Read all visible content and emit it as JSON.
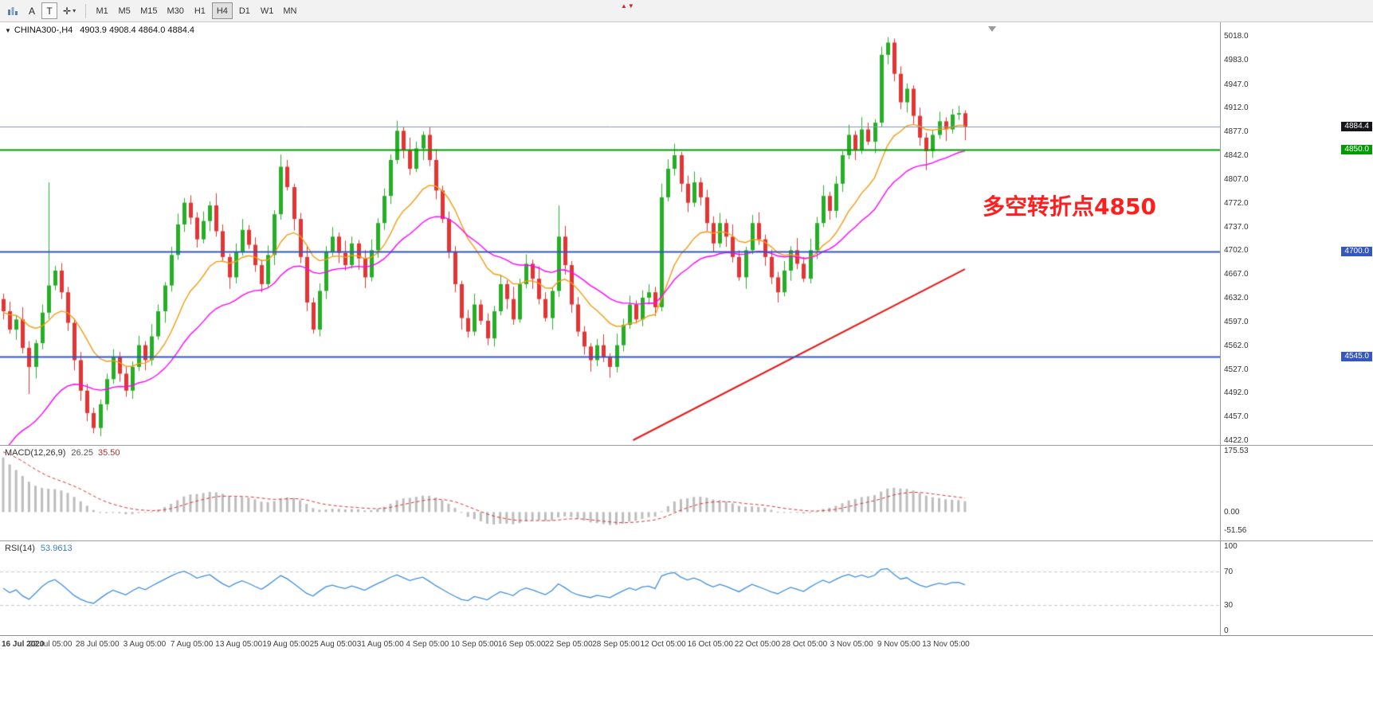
{
  "toolbar": {
    "a_label": "A",
    "t_label": "T",
    "timeframes": [
      "M1",
      "M5",
      "M15",
      "M30",
      "H1",
      "H4",
      "D1",
      "W1",
      "MN"
    ],
    "active_timeframe": "H4"
  },
  "icons": {
    "dropdown_triangle": "▼",
    "crosshair": "✛",
    "caret": "▾",
    "alert_up": "▲",
    "alert_down": "▼"
  },
  "chart": {
    "header": {
      "symbol": "CHINA300-,H4",
      "ohlc": "4903.9 4908.4 4864.0 4884.4"
    },
    "annotation": {
      "text": "多空转折点4850",
      "color": "#ff1e1e"
    }
  },
  "macd": {
    "label": "MACD(12,26,9)",
    "value": "26.25",
    "signal_value": "35.50",
    "axis": [
      "175.53",
      "0.00",
      "-51.56"
    ]
  },
  "rsi": {
    "label": "RSI(14)",
    "value": "53.9613",
    "axis": [
      "100",
      "70",
      "30",
      "0"
    ]
  },
  "chart_data": {
    "type": "candlestick",
    "symbol": "CHINA300-",
    "timeframe": "H4",
    "last_ohlc": {
      "open": 4903.9,
      "high": 4908.4,
      "low": 4864.0,
      "close": 4884.4
    },
    "ylim": [
      4422.0,
      5018.0
    ],
    "up_color": "#27ae27",
    "down_color": "#e43434",
    "y_axis_ticks": [
      5018.0,
      4983.0,
      4947.0,
      4912.0,
      4877.0,
      4842.0,
      4807.0,
      4772.0,
      4737.0,
      4702.0,
      4667.0,
      4632.0,
      4597.0,
      4562.0,
      4527.0,
      4492.0,
      4457.0,
      4422.0
    ],
    "x_labels": [
      "16 Jul 2020",
      "22 Jul 05:00",
      "28 Jul 05:00",
      "3 Aug 05:00",
      "7 Aug 05:00",
      "13 Aug 05:00",
      "19 Aug 05:00",
      "25 Aug 05:00",
      "31 Aug 05:00",
      "4 Sep 05:00",
      "10 Sep 05:00",
      "16 Sep 05:00",
      "22 Sep 05:00",
      "28 Sep 05:00",
      "12 Oct 05:00",
      "16 Oct 05:00",
      "22 Oct 05:00",
      "28 Oct 05:00",
      "3 Nov 05:00",
      "9 Nov 05:00",
      "13 Nov 05:00"
    ],
    "horizontal_levels": [
      {
        "price": 4884.4,
        "label": "4884.4",
        "line_color": "#7d96b2",
        "line_width": 1,
        "tag_bg": "#15151c",
        "type": "current-price"
      },
      {
        "price": 4850.0,
        "label": "4850.0",
        "line_color": "#009b00",
        "line_width": 2,
        "tag_bg": "#009b00",
        "type": "level"
      },
      {
        "price": 4700.0,
        "label": "4700.0",
        "line_color": "#3456c0",
        "line_width": 2,
        "tag_bg": "#3456c0",
        "type": "level"
      },
      {
        "price": 4545.0,
        "label": "4545.0",
        "line_color": "#3456c0",
        "line_width": 2,
        "tag_bg": "#3456c0",
        "type": "level"
      }
    ],
    "trendline": {
      "color": "#e81717",
      "width": 2,
      "from": {
        "bar_frac": 0.655,
        "price": 4422.0
      },
      "to": {
        "bar_frac": 1.0,
        "price": 4674.0
      }
    },
    "moving_averages": [
      {
        "name": "fast-ma",
        "color": "#f39c12",
        "period": 14,
        "init": 4610
      },
      {
        "name": "slow-ma",
        "color": "#ff00ff",
        "period": 30,
        "init": 4390
      }
    ],
    "macd": {
      "params": [
        12,
        26,
        9
      ],
      "last_values": [
        26.25,
        35.5
      ],
      "range": [
        -51.56,
        175.53
      ],
      "histogram_color": "#bdbdbd",
      "signal_color": "#e03030",
      "init": {
        "ema12": 4700,
        "ema26": 4524.5,
        "signal": 175.5
      }
    },
    "rsi": {
      "period": 14,
      "last_value": 53.9613,
      "range": [
        0,
        100
      ],
      "levels": [
        70,
        30
      ],
      "line_color": "#3f8fde",
      "level_color": "#c4cad1"
    },
    "candles_ohlc": [
      [
        4630,
        4638,
        4600,
        4612
      ],
      [
        4612,
        4626,
        4579,
        4585
      ],
      [
        4585,
        4606,
        4570,
        4600
      ],
      [
        4600,
        4618,
        4550,
        4558
      ],
      [
        4558,
        4568,
        4490,
        4530
      ],
      [
        4530,
        4570,
        4513,
        4565
      ],
      [
        4565,
        4622,
        4556,
        4610
      ],
      [
        4610,
        4802,
        4601,
        4650
      ],
      [
        4650,
        4679,
        4643,
        4672
      ],
      [
        4672,
        4683,
        4630,
        4640
      ],
      [
        4640,
        4648,
        4583,
        4595
      ],
      [
        4595,
        4601,
        4525,
        4540
      ],
      [
        4540,
        4552,
        4480,
        4495
      ],
      [
        4495,
        4505,
        4450,
        4462
      ],
      [
        4462,
        4470,
        4432,
        4440
      ],
      [
        4440,
        4482,
        4428,
        4475
      ],
      [
        4475,
        4520,
        4466,
        4512
      ],
      [
        4512,
        4556,
        4505,
        4545
      ],
      [
        4545,
        4552,
        4508,
        4520
      ],
      [
        4520,
        4531,
        4486,
        4495
      ],
      [
        4495,
        4538,
        4483,
        4530
      ],
      [
        4530,
        4576,
        4524,
        4562
      ],
      [
        4562,
        4568,
        4525,
        4540
      ],
      [
        4540,
        4593,
        4532,
        4575
      ],
      [
        4575,
        4622,
        4570,
        4612
      ],
      [
        4612,
        4655,
        4595,
        4650
      ],
      [
        4650,
        4707,
        4641,
        4695
      ],
      [
        4695,
        4756,
        4688,
        4740
      ],
      [
        4740,
        4779,
        4729,
        4772
      ],
      [
        4772,
        4783,
        4740,
        4750
      ],
      [
        4750,
        4758,
        4706,
        4718
      ],
      [
        4718,
        4759,
        4712,
        4745
      ],
      [
        4745,
        4774,
        4730,
        4768
      ],
      [
        4768,
        4786,
        4722,
        4730
      ],
      [
        4730,
        4740,
        4687,
        4692
      ],
      [
        4692,
        4697,
        4645,
        4662
      ],
      [
        4662,
        4712,
        4653,
        4700
      ],
      [
        4700,
        4748,
        4694,
        4732
      ],
      [
        4732,
        4739,
        4704,
        4710
      ],
      [
        4710,
        4721,
        4670,
        4680
      ],
      [
        4680,
        4688,
        4640,
        4652
      ],
      [
        4652,
        4709,
        4646,
        4695
      ],
      [
        4695,
        4761,
        4680,
        4755
      ],
      [
        4755,
        4843,
        4747,
        4825
      ],
      [
        4825,
        4835,
        4790,
        4795
      ],
      [
        4795,
        4800,
        4731,
        4748
      ],
      [
        4748,
        4757,
        4683,
        4692
      ],
      [
        4692,
        4708,
        4612,
        4625
      ],
      [
        4625,
        4632,
        4579,
        4585
      ],
      [
        4585,
        4653,
        4575,
        4642
      ],
      [
        4642,
        4708,
        4630,
        4700
      ],
      [
        4700,
        4736,
        4694,
        4722
      ],
      [
        4722,
        4728,
        4683,
        4698
      ],
      [
        4698,
        4716,
        4672,
        4680
      ],
      [
        4680,
        4722,
        4675,
        4712
      ],
      [
        4712,
        4717,
        4673,
        4690
      ],
      [
        4690,
        4702,
        4646,
        4662
      ],
      [
        4662,
        4718,
        4656,
        4702
      ],
      [
        4702,
        4749,
        4691,
        4742
      ],
      [
        4742,
        4793,
        4732,
        4782
      ],
      [
        4782,
        4843,
        4770,
        4835
      ],
      [
        4835,
        4893,
        4829,
        4878
      ],
      [
        4878,
        4884,
        4837,
        4850
      ],
      [
        4850,
        4868,
        4813,
        4822
      ],
      [
        4822,
        4862,
        4817,
        4852
      ],
      [
        4852,
        4877,
        4835,
        4872
      ],
      [
        4872,
        4884,
        4826,
        4835
      ],
      [
        4835,
        4851,
        4777,
        4790
      ],
      [
        4790,
        4797,
        4742,
        4748
      ],
      [
        4748,
        4759,
        4690,
        4700
      ],
      [
        4700,
        4708,
        4640,
        4652
      ],
      [
        4652,
        4657,
        4585,
        4602
      ],
      [
        4602,
        4614,
        4573,
        4582
      ],
      [
        4582,
        4638,
        4576,
        4622
      ],
      [
        4622,
        4629,
        4592,
        4598
      ],
      [
        4598,
        4609,
        4562,
        4572
      ],
      [
        4572,
        4620,
        4560,
        4612
      ],
      [
        4612,
        4666,
        4606,
        4652
      ],
      [
        4652,
        4658,
        4615,
        4630
      ],
      [
        4630,
        4648,
        4592,
        4600
      ],
      [
        4600,
        4660,
        4595,
        4652
      ],
      [
        4652,
        4696,
        4646,
        4682
      ],
      [
        4682,
        4688,
        4645,
        4660
      ],
      [
        4660,
        4678,
        4622,
        4630
      ],
      [
        4630,
        4640,
        4597,
        4602
      ],
      [
        4602,
        4647,
        4585,
        4642
      ],
      [
        4642,
        4768,
        4633,
        4722
      ],
      [
        4722,
        4738,
        4666,
        4680
      ],
      [
        4680,
        4686,
        4610,
        4622
      ],
      [
        4622,
        4633,
        4575,
        4582
      ],
      [
        4582,
        4590,
        4548,
        4560
      ],
      [
        4560,
        4565,
        4523,
        4540
      ],
      [
        4540,
        4571,
        4531,
        4562
      ],
      [
        4562,
        4578,
        4537,
        4545
      ],
      [
        4545,
        4550,
        4514,
        4530
      ],
      [
        4530,
        4579,
        4522,
        4562
      ],
      [
        4562,
        4601,
        4553,
        4592
      ],
      [
        4592,
        4635,
        4586,
        4622
      ],
      [
        4622,
        4628,
        4594,
        4600
      ],
      [
        4600,
        4643,
        4590,
        4632
      ],
      [
        4632,
        4652,
        4622,
        4640
      ],
      [
        4640,
        4648,
        4605,
        4618
      ],
      [
        4618,
        4800,
        4612,
        4780
      ],
      [
        4780,
        4836,
        4774,
        4822
      ],
      [
        4822,
        4859,
        4812,
        4842
      ],
      [
        4842,
        4847,
        4788,
        4800
      ],
      [
        4800,
        4812,
        4758,
        4772
      ],
      [
        4772,
        4818,
        4766,
        4802
      ],
      [
        4802,
        4809,
        4768,
        4780
      ],
      [
        4780,
        4791,
        4730,
        4742
      ],
      [
        4742,
        4752,
        4700,
        4712
      ],
      [
        4712,
        4757,
        4706,
        4742
      ],
      [
        4742,
        4748,
        4707,
        4722
      ],
      [
        4722,
        4740,
        4684,
        4692
      ],
      [
        4692,
        4702,
        4657,
        4662
      ],
      [
        4662,
        4707,
        4645,
        4702
      ],
      [
        4702,
        4754,
        4696,
        4742
      ],
      [
        4742,
        4758,
        4710,
        4718
      ],
      [
        4718,
        4725,
        4679,
        4692
      ],
      [
        4692,
        4703,
        4652,
        4662
      ],
      [
        4662,
        4670,
        4625,
        4640
      ],
      [
        4640,
        4686,
        4634,
        4672
      ],
      [
        4672,
        4708,
        4657,
        4702
      ],
      [
        4702,
        4720,
        4674,
        4682
      ],
      [
        4682,
        4692,
        4655,
        4660
      ],
      [
        4660,
        4719,
        4653,
        4702
      ],
      [
        4702,
        4751,
        4689,
        4742
      ],
      [
        4742,
        4798,
        4736,
        4782
      ],
      [
        4782,
        4788,
        4747,
        4760
      ],
      [
        4760,
        4811,
        4750,
        4800
      ],
      [
        4800,
        4848,
        4788,
        4842
      ],
      [
        4842,
        4887,
        4836,
        4872
      ],
      [
        4872,
        4878,
        4835,
        4850
      ],
      [
        4850,
        4898,
        4844,
        4880
      ],
      [
        4880,
        4890,
        4857,
        4862
      ],
      [
        4862,
        4895,
        4845,
        4890
      ],
      [
        4890,
        5002,
        4884,
        4990
      ],
      [
        4990,
        5016,
        4976,
        5008
      ],
      [
        5008,
        5014,
        4951,
        4962
      ],
      [
        4962,
        4973,
        4910,
        4920
      ],
      [
        4920,
        4948,
        4905,
        4940
      ],
      [
        4940,
        4945,
        4888,
        4900
      ],
      [
        4900,
        4912,
        4856,
        4868
      ],
      [
        4868,
        4875,
        4820,
        4848
      ],
      [
        4848,
        4880,
        4838,
        4872
      ],
      [
        4872,
        4906,
        4866,
        4892
      ],
      [
        4892,
        4898,
        4863,
        4880
      ],
      [
        4880,
        4910,
        4874,
        4902
      ],
      [
        4902,
        4915,
        4894,
        4904
      ],
      [
        4903.9,
        4908.4,
        4864,
        4884.4
      ]
    ]
  }
}
